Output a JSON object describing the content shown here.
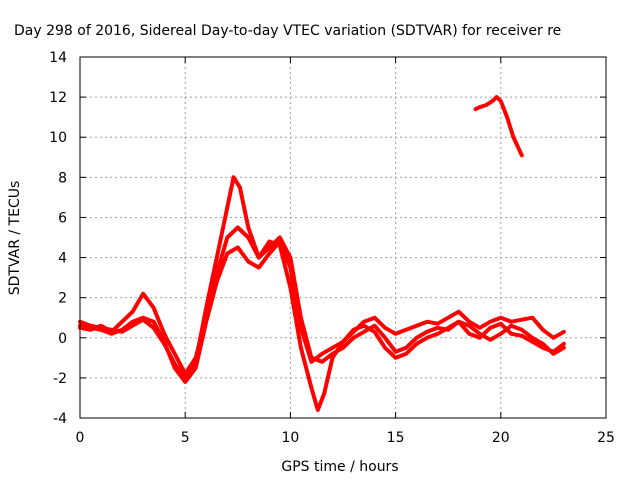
{
  "chart_data": {
    "type": "line",
    "title": "Day 298 of 2016, Sidereal Day-to-day VTEC variation (SDTVAR) for receiver re",
    "xlabel": "GPS time / hours",
    "ylabel": "SDTVAR / TECUs",
    "xlim": [
      0,
      25
    ],
    "ylim": [
      -4,
      14
    ],
    "xticks": [
      0,
      5,
      10,
      15,
      20,
      25
    ],
    "yticks": [
      -4,
      -2,
      0,
      2,
      4,
      6,
      8,
      10,
      12,
      14
    ],
    "grid": true,
    "series_color": "#ff0000",
    "series": [
      {
        "x": [
          0,
          0.5,
          1,
          1.5,
          2,
          2.5,
          3,
          3.5,
          4,
          4.5,
          5,
          5.5,
          6,
          6.5,
          7,
          7.3,
          7.6,
          8,
          8.5,
          9,
          9.5,
          10,
          10.5,
          11,
          11.3,
          11.6,
          12,
          12.5,
          13,
          13.5,
          14,
          14.5,
          15,
          15.5,
          16,
          16.5,
          17,
          17.5,
          18,
          18.5,
          19,
          19.5,
          20,
          20.5,
          21,
          21.5,
          22,
          22.5,
          23
        ],
        "values": [
          0.8,
          0.6,
          0.5,
          0.4,
          0.3,
          0.6,
          0.9,
          0.5,
          -0.3,
          -1.3,
          -2.0,
          -1.2,
          1.5,
          4.0,
          6.5,
          8.0,
          7.5,
          5.5,
          4.0,
          4.8,
          4.6,
          2.5,
          -0.5,
          -2.5,
          -3.6,
          -2.8,
          -1.0,
          -0.2,
          0.3,
          0.8,
          1.0,
          0.5,
          0.2,
          0.4,
          0.6,
          0.8,
          0.7,
          1.0,
          1.3,
          0.8,
          0.5,
          0.8,
          1.0,
          0.8,
          0.9,
          1.0,
          0.4,
          0.0,
          0.3
        ]
      },
      {
        "x": [
          0,
          0.5,
          1,
          1.5,
          2,
          2.5,
          3,
          3.5,
          4,
          4.5,
          5,
          5.5,
          6,
          6.5,
          7,
          7.5,
          8,
          8.5,
          9,
          9.5,
          10,
          10.5,
          11,
          11.5,
          12,
          12.5,
          13,
          13.5,
          14,
          14.5,
          15,
          15.5,
          16,
          16.5,
          17,
          17.5,
          18,
          18.5,
          19,
          19.5,
          20,
          20.5,
          21,
          21.5,
          22,
          22.5,
          23
        ],
        "values": [
          0.5,
          0.4,
          0.6,
          0.3,
          0.8,
          1.3,
          2.2,
          1.5,
          0.2,
          -0.8,
          -1.8,
          -1.0,
          1.0,
          3.2,
          5.0,
          5.5,
          5.0,
          4.0,
          4.5,
          5.0,
          4.0,
          1.0,
          -1.0,
          -1.2,
          -0.8,
          -0.5,
          0.0,
          0.3,
          0.6,
          0.0,
          -0.7,
          -0.5,
          0.0,
          0.3,
          0.5,
          0.4,
          0.8,
          0.2,
          0.0,
          0.5,
          0.7,
          0.2,
          0.1,
          -0.2,
          -0.5,
          -0.7,
          -0.3
        ]
      },
      {
        "x": [
          0,
          0.5,
          1,
          1.5,
          2,
          2.5,
          3,
          3.5,
          4,
          4.5,
          5,
          5.5,
          6,
          6.5,
          7,
          7.5,
          8,
          8.5,
          9,
          9.5,
          10,
          10.5,
          11,
          11.5,
          12,
          12.5,
          13,
          13.5,
          14,
          14.5,
          15,
          15.5,
          16,
          16.5,
          17,
          17.5,
          18,
          18.5,
          19,
          19.5,
          20,
          20.5,
          21,
          21.5,
          22,
          22.5,
          23
        ],
        "values": [
          0.6,
          0.5,
          0.4,
          0.2,
          0.4,
          0.8,
          1.0,
          0.8,
          -0.2,
          -1.5,
          -2.2,
          -1.5,
          0.8,
          2.8,
          4.2,
          4.5,
          3.8,
          3.5,
          4.2,
          4.8,
          3.5,
          0.5,
          -1.2,
          -0.8,
          -0.5,
          -0.2,
          0.4,
          0.6,
          0.3,
          -0.5,
          -1.0,
          -0.8,
          -0.3,
          0.0,
          0.2,
          0.5,
          0.8,
          0.6,
          0.2,
          -0.1,
          0.2,
          0.6,
          0.4,
          0.0,
          -0.3,
          -0.8,
          -0.5
        ]
      },
      {
        "x": [
          18.8,
          19.0,
          19.3,
          19.6,
          19.8,
          20.0,
          20.3,
          20.6,
          21.0
        ],
        "values": [
          11.4,
          11.5,
          11.6,
          11.8,
          12.0,
          11.8,
          11.0,
          10.0,
          9.1
        ]
      }
    ]
  }
}
